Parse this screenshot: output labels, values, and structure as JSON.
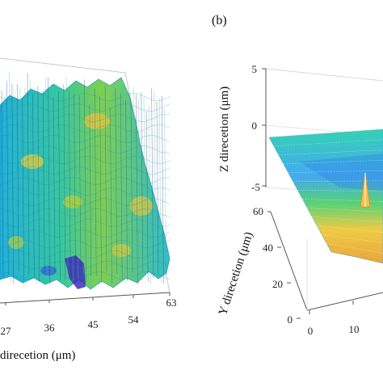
{
  "chart_data": [
    {
      "type": "surface",
      "panel_label": "",
      "xlabel": "direcetion  (μm)",
      "ylabel": "",
      "zlabel": "",
      "x_ticks": [
        "27",
        "36",
        "45",
        "54",
        "63"
      ],
      "xlim": [
        18,
        63
      ],
      "colormap": [
        "#3d2dbd",
        "#2a7fe0",
        "#20c0d0",
        "#3fcf7a",
        "#b8d23a",
        "#f0c028"
      ],
      "surface": "rough mesh with many random peaks and valleys; deep blue valley near x≈45"
    },
    {
      "type": "surface",
      "panel_label": "(b)",
      "xlabel": "",
      "ylabel": "Y direcetion  (μm)",
      "zlabel": "Z direcetion  (μm)",
      "x_ticks": [
        "0",
        "10"
      ],
      "y_ticks": [
        "0",
        "20",
        "40",
        "60"
      ],
      "z_ticks": [
        "5",
        "0",
        "-5"
      ],
      "zlim": [
        -5,
        5
      ],
      "ylim": [
        0,
        60
      ],
      "colormap": [
        "#2a7fe0",
        "#20c0d0",
        "#3fcf7a",
        "#e8d040",
        "#f0a020"
      ],
      "surface": "flat plane with a single sharp central spike"
    }
  ]
}
